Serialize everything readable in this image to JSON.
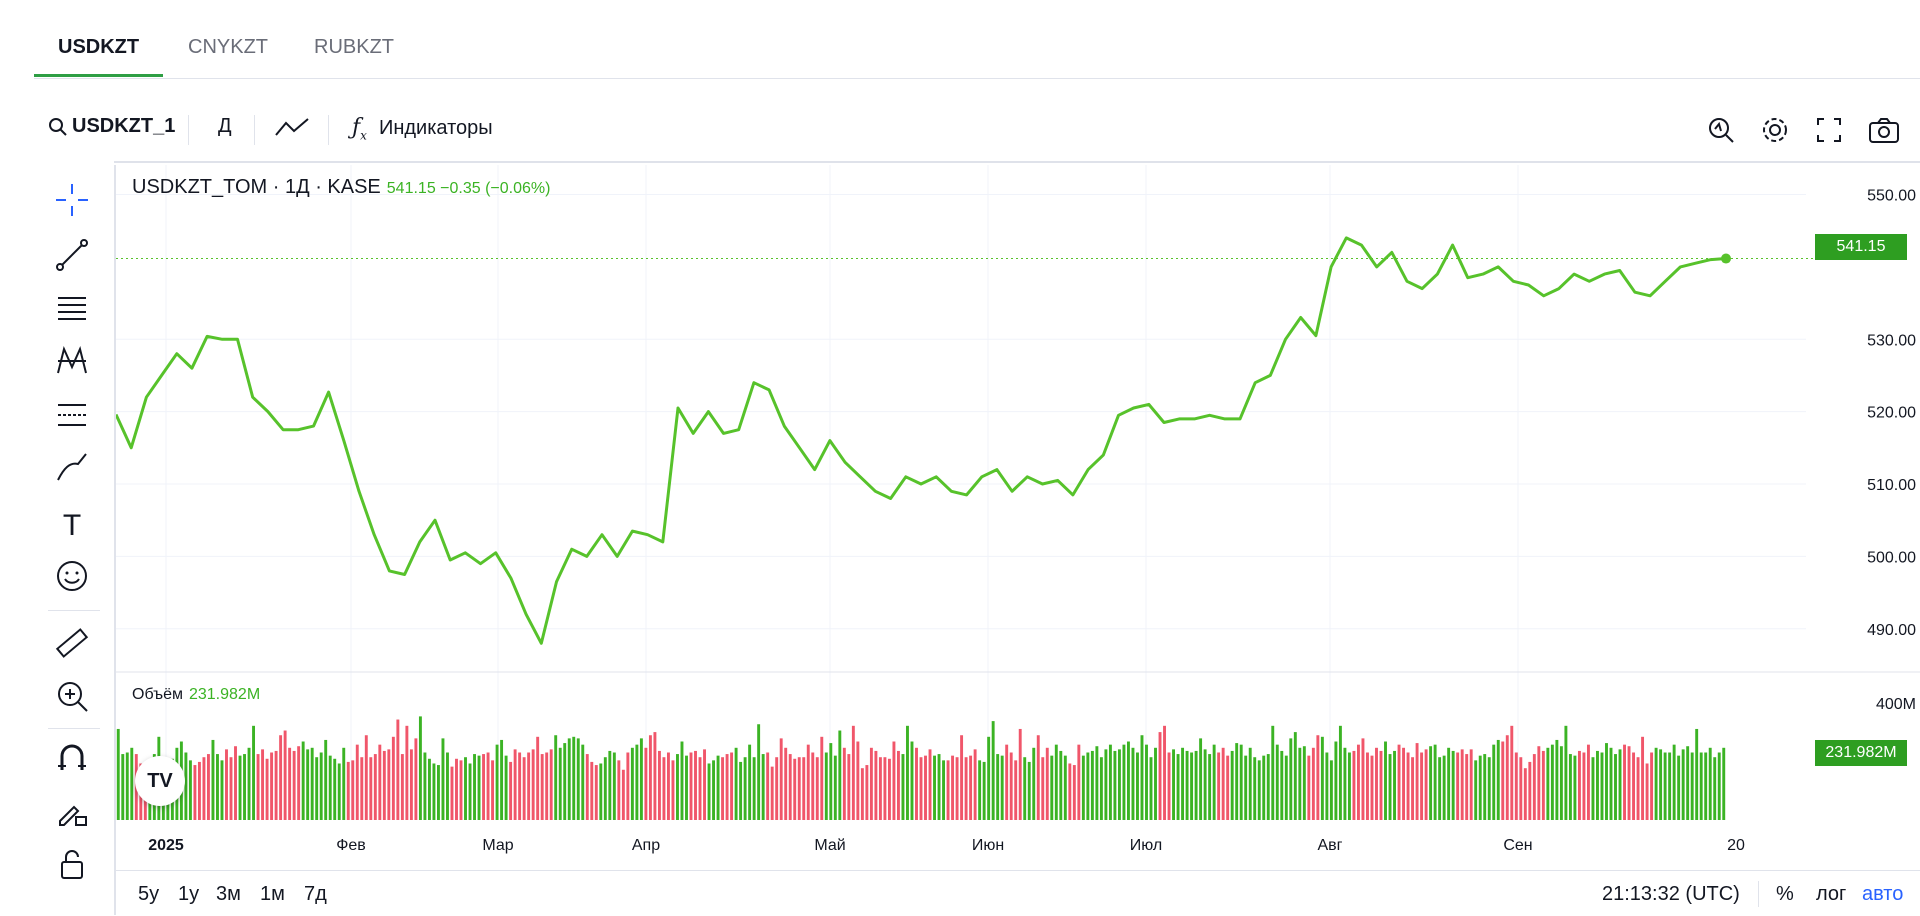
{
  "tabs": [
    {
      "label": "USDKZT",
      "active": true
    },
    {
      "label": "CNYKZT",
      "active": false
    },
    {
      "label": "RUBKZT",
      "active": false
    }
  ],
  "toolbar": {
    "symbol": "USDKZT_1",
    "interval": "Д",
    "indicators_label": "Индикаторы",
    "icons": [
      "search-icon",
      "line-chart-icon",
      "fx-icon",
      "replay-icon",
      "gear-icon",
      "fullscreen-icon",
      "camera-icon"
    ]
  },
  "legend": {
    "title": "USDKZT_TOM · 1Д · KASE",
    "values": "541.15 −0.35 (−0.06%)"
  },
  "volume_legend": {
    "label": "Объём",
    "value": "231.982M"
  },
  "price_tag": "541.15",
  "volume_tag": "231.982M",
  "volume_axis_label": "400M",
  "logo_text": "TV",
  "bottom": {
    "ranges": [
      "5y",
      "1y",
      "3м",
      "1м",
      "7д"
    ],
    "time": "21:13:32 (UTC)",
    "percent": "%",
    "log": "лог",
    "auto": "авто"
  },
  "colors": {
    "line": "#57c22b",
    "up": "#3bb324",
    "down": "#f0566a",
    "accent_blue": "#2962ff"
  },
  "chart_data": {
    "type": "line",
    "series": [
      {
        "values": [
          519.6,
          515.0,
          522.0,
          525.0,
          528.0,
          526.0,
          530.4,
          530.0,
          530.0,
          522.0,
          520.0,
          517.5,
          517.5,
          518.0,
          522.7,
          516.0,
          509.0,
          503.0,
          498.0,
          497.5,
          502.0,
          505.0,
          499.5,
          500.5,
          499.0,
          500.5,
          497.0,
          492.0,
          488.0,
          496.5,
          501.0,
          500.0,
          503.0,
          500.0,
          503.5,
          503.0,
          502.0,
          520.5,
          517.0,
          520.0,
          517.0,
          517.5,
          524.0,
          523.0,
          518.0,
          515.0,
          512.0,
          516.0,
          513.0,
          511.0,
          509.0,
          508.0,
          511.0,
          510.0,
          511.0,
          509.0,
          508.5,
          511.0,
          512.0,
          509.0,
          511.0,
          510.0,
          510.5,
          508.5,
          512.0,
          514.0,
          519.5,
          520.5,
          521.0,
          518.5,
          519.0,
          519.0,
          519.5,
          519.0,
          519.0,
          524.0,
          525.0,
          530.0,
          533.0,
          530.5,
          540.0,
          544.0,
          543.0,
          540.0,
          542.0,
          538.0,
          537.0,
          539.0,
          543.0,
          538.5,
          539.0,
          540.0,
          538.0,
          537.5,
          536.0,
          537.0,
          539.0,
          538.0,
          539.0,
          539.5,
          536.5,
          536.0,
          538.0,
          540.0,
          540.5,
          541.0,
          541.15
        ]
      }
    ],
    "volume": {
      "name": "Объём",
      "values": [
        290,
        210,
        215,
        230,
        210,
        180,
        165,
        190,
        210,
        265,
        200,
        190,
        195,
        230,
        250,
        215,
        190,
        175,
        185,
        200,
        210,
        255,
        210,
        190,
        225,
        200,
        235,
        205,
        210,
        230,
        300,
        210,
        225,
        195,
        215,
        220,
        270,
        285,
        230,
        220,
        235,
        250,
        225,
        230,
        200,
        215,
        255,
        205,
        195,
        180,
        230,
        185,
        190,
        240,
        200,
        270,
        200,
        210,
        240,
        220,
        225,
        265,
        320,
        210,
        300,
        225,
        260,
        330,
        215,
        195,
        180,
        175,
        260,
        215,
        170,
        195,
        190,
        200,
        180,
        210,
        205,
        210,
        215,
        190,
        240,
        255,
        205,
        185,
        225,
        215,
        200,
        215,
        225,
        265,
        210,
        215,
        225,
        270,
        230,
        245,
        260,
        265,
        260,
        240,
        210,
        185,
        175,
        180,
        200,
        220,
        215,
        190,
        160,
        215,
        230,
        240,
        260,
        230,
        270,
        280,
        220,
        200,
        215,
        190,
        210,
        250,
        205,
        215,
        220,
        200,
        225,
        180,
        190,
        205,
        200,
        210,
        215,
        230,
        185,
        200,
        240,
        200,
        305,
        210,
        215,
        170,
        200,
        260,
        230,
        210,
        195,
        200,
        200,
        240,
        215,
        200,
        265,
        215,
        245,
        205,
        285,
        230,
        210,
        300,
        250,
        165,
        175,
        230,
        220,
        200,
        200,
        195,
        250,
        220,
        210,
        300,
        250,
        230,
        200,
        205,
        225,
        205,
        210,
        190,
        190,
        205,
        200,
        270,
        200,
        205,
        225,
        190,
        185,
        265,
        315,
        210,
        205,
        240,
        215,
        190,
        290,
        200,
        185,
        230,
        270,
        200,
        230,
        205,
        240,
        220,
        205,
        180,
        175,
        240,
        205,
        215,
        220,
        235,
        200,
        225,
        240,
        220,
        225,
        240,
        250,
        230,
        215,
        270,
        240,
        200,
        230,
        280,
        300,
        215,
        225,
        210,
        230,
        220,
        215,
        220,
        260,
        225,
        210,
        240,
        215,
        230,
        205,
        220,
        245,
        240,
        205,
        230,
        200,
        190,
        205,
        210,
        300,
        240,
        220,
        205,
        260,
        280,
        230,
        235,
        205,
        230,
        270,
        265,
        215,
        190,
        250,
        300,
        230,
        215,
        220,
        240,
        260,
        215,
        205,
        230,
        220,
        250,
        210,
        220,
        240,
        230,
        215,
        200,
        245,
        215,
        225,
        235,
        240,
        200,
        205,
        230,
        220,
        215,
        225,
        210,
        225,
        190,
        205,
        210,
        200,
        240,
        255,
        250,
        270,
        300,
        215,
        200,
        165,
        185,
        210,
        235,
        220,
        230,
        240,
        255,
        235,
        300,
        210,
        205,
        220,
        215,
        240,
        200,
        220,
        215,
        245,
        230,
        210,
        225,
        240,
        235,
        215,
        200,
        265,
        180,
        215,
        230,
        225,
        215,
        215,
        240,
        205,
        225,
        235,
        215,
        290,
        215,
        215,
        230,
        200,
        215,
        230
      ],
      "up": []
    },
    "ylim": [
      485,
      552
    ],
    "y_ticks": [
      "550.00",
      "530.00",
      "520.00",
      "510.00",
      "500.00",
      "490.00"
    ],
    "x_ticks": [
      "2025",
      "Фев",
      "Мар",
      "Апр",
      "Май",
      "Июн",
      "Июл",
      "Авг",
      "Сен",
      "20"
    ],
    "grid": true
  }
}
